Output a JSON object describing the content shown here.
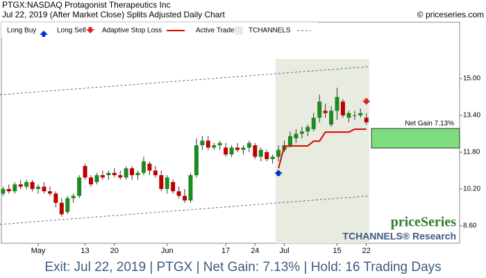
{
  "chart_data": {
    "type": "candlestick",
    "title": "PTGX:NASDAQ Protagonist Therapeutics Inc",
    "subtitle": "Jul 22, 2019 (After Market Close)  Splits Adjusted Daily Chart",
    "credit": "© priceseries.com",
    "legend": [
      "Long Buy",
      "Long Sell",
      "Adaptive Stop Loss",
      "Active Trade",
      "TCHANNELS"
    ],
    "watermark": "priceSeries",
    "watermark_sub": "TCHANNELS® Research",
    "gain_label": "Net Gain 7.13%",
    "footer": "Exit: Jul 22, 2019 | PTGX | Net Gain: 7.13% | Hold: 16 Trading Days",
    "up_color": "#1f8a1f",
    "down_color": "#c00000",
    "stop_color": "#e00000",
    "buy_color": "#0033cc",
    "sell_color": "#e02020",
    "shade_color": "#e8ebe0",
    "gain_color": "#7ddc7d",
    "categories": [
      null,
      null,
      null,
      null,
      null,
      null,
      "May",
      null,
      null,
      null,
      null,
      null,
      null,
      null,
      "13",
      null,
      null,
      null,
      null,
      "20",
      null,
      null,
      null,
      null,
      null,
      null,
      null,
      null,
      "Jun",
      null,
      null,
      null,
      null,
      null,
      null,
      null,
      null,
      null,
      "17",
      null,
      null,
      null,
      null,
      "24",
      null,
      null,
      null,
      null,
      "Jul",
      null,
      null,
      null,
      null,
      null,
      null,
      null,
      null,
      "15",
      null,
      null,
      null,
      null,
      "22"
    ],
    "open": [
      10.0,
      10.2,
      10.1,
      10.4,
      10.3,
      10.5,
      10.2,
      10.3,
      10.1,
      10.0,
      9.6,
      9.2,
      9.8,
      9.9,
      11.2,
      10.7,
      10.5,
      10.8,
      10.8,
      10.9,
      10.8,
      10.7,
      11.1,
      10.8,
      10.9,
      11.3,
      11.0,
      10.8,
      10.2,
      10.5,
      10.1,
      9.9,
      9.7,
      10.8,
      12.1,
      12.3,
      12.0,
      12.1,
      12.0,
      11.7,
      12.0,
      11.9,
      12.0,
      12.1,
      11.6,
      11.8,
      11.5,
      11.6,
      11.9,
      12.1,
      12.4,
      12.6,
      12.7,
      12.8,
      13.3,
      13.6,
      13.0,
      13.6,
      14.0,
      13.3,
      13.4,
      13.4,
      13.3
    ],
    "high": [
      10.3,
      10.4,
      10.5,
      10.6,
      10.6,
      10.6,
      10.4,
      10.5,
      10.3,
      10.1,
      9.8,
      9.9,
      10.0,
      10.8,
      11.3,
      10.8,
      10.9,
      11.0,
      11.0,
      11.1,
      11.0,
      11.2,
      11.2,
      11.0,
      11.6,
      11.4,
      11.2,
      11.0,
      10.8,
      10.6,
      10.3,
      10.2,
      10.9,
      12.4,
      12.5,
      12.5,
      12.2,
      12.3,
      12.2,
      12.1,
      12.2,
      12.1,
      12.3,
      12.2,
      12.0,
      11.9,
      11.7,
      12.1,
      12.3,
      12.7,
      12.8,
      12.9,
      13.0,
      13.5,
      14.3,
      13.9,
      13.8,
      14.6,
      14.1,
      13.6,
      13.6,
      13.7,
      13.5
    ],
    "low": [
      9.9,
      10.0,
      10.0,
      10.2,
      10.2,
      10.1,
      10.0,
      10.0,
      9.9,
      9.4,
      9.0,
      9.1,
      9.6,
      9.8,
      10.6,
      10.3,
      10.4,
      10.6,
      10.6,
      10.7,
      10.6,
      10.6,
      10.6,
      10.6,
      10.8,
      10.8,
      10.7,
      10.1,
      10.0,
      10.0,
      9.8,
      9.6,
      9.6,
      10.7,
      11.9,
      11.9,
      11.9,
      11.9,
      11.6,
      11.6,
      11.8,
      11.7,
      11.8,
      11.5,
      11.4,
      11.4,
      11.3,
      11.4,
      11.8,
      12.0,
      12.2,
      12.4,
      12.5,
      12.7,
      13.1,
      13.3,
      12.9,
      13.2,
      13.3,
      13.1,
      13.2,
      13.3,
      13.0
    ],
    "close": [
      10.2,
      10.1,
      10.4,
      10.3,
      10.5,
      10.2,
      10.3,
      10.1,
      10.0,
      9.6,
      9.1,
      9.8,
      9.9,
      10.7,
      10.7,
      10.4,
      10.8,
      10.7,
      10.9,
      10.8,
      10.7,
      11.1,
      10.8,
      10.9,
      11.4,
      11.0,
      10.8,
      10.2,
      10.7,
      10.1,
      9.9,
      9.7,
      10.8,
      12.1,
      12.3,
      12.0,
      12.1,
      12.2,
      11.7,
      12.0,
      11.9,
      12.0,
      12.2,
      11.6,
      11.9,
      11.5,
      11.6,
      11.9,
      12.1,
      12.5,
      12.6,
      12.7,
      12.9,
      13.3,
      14.0,
      13.5,
      13.6,
      14.2,
      13.4,
      13.5,
      13.4,
      13.5,
      13.1
    ],
    "stop_loss": [
      null,
      null,
      null,
      null,
      null,
      null,
      null,
      null,
      null,
      null,
      null,
      null,
      null,
      null,
      null,
      null,
      null,
      null,
      null,
      null,
      null,
      null,
      null,
      null,
      null,
      null,
      null,
      null,
      null,
      null,
      null,
      null,
      null,
      null,
      null,
      null,
      null,
      null,
      null,
      null,
      null,
      null,
      null,
      null,
      null,
      null,
      null,
      11.1,
      12.05,
      12.07,
      12.07,
      12.07,
      12.07,
      12.28,
      12.28,
      12.67,
      12.67,
      12.67,
      12.67,
      12.67,
      12.8,
      12.8,
      12.8
    ],
    "channel_upper": [
      14.3,
      15.52
    ],
    "channel_lower": [
      8.66,
      9.9
    ],
    "gain_range": [
      11.98,
      12.83
    ],
    "ylim": [
      7.84,
      17.45
    ],
    "yticks": [
      {
        "value": 8.6,
        "label": "8.60"
      },
      {
        "value": 10.2,
        "label": "10.20"
      },
      {
        "value": 11.8,
        "label": "11.80"
      },
      {
        "value": 13.4,
        "label": "13.40"
      },
      {
        "value": 15.0,
        "label": "15.00"
      }
    ]
  }
}
